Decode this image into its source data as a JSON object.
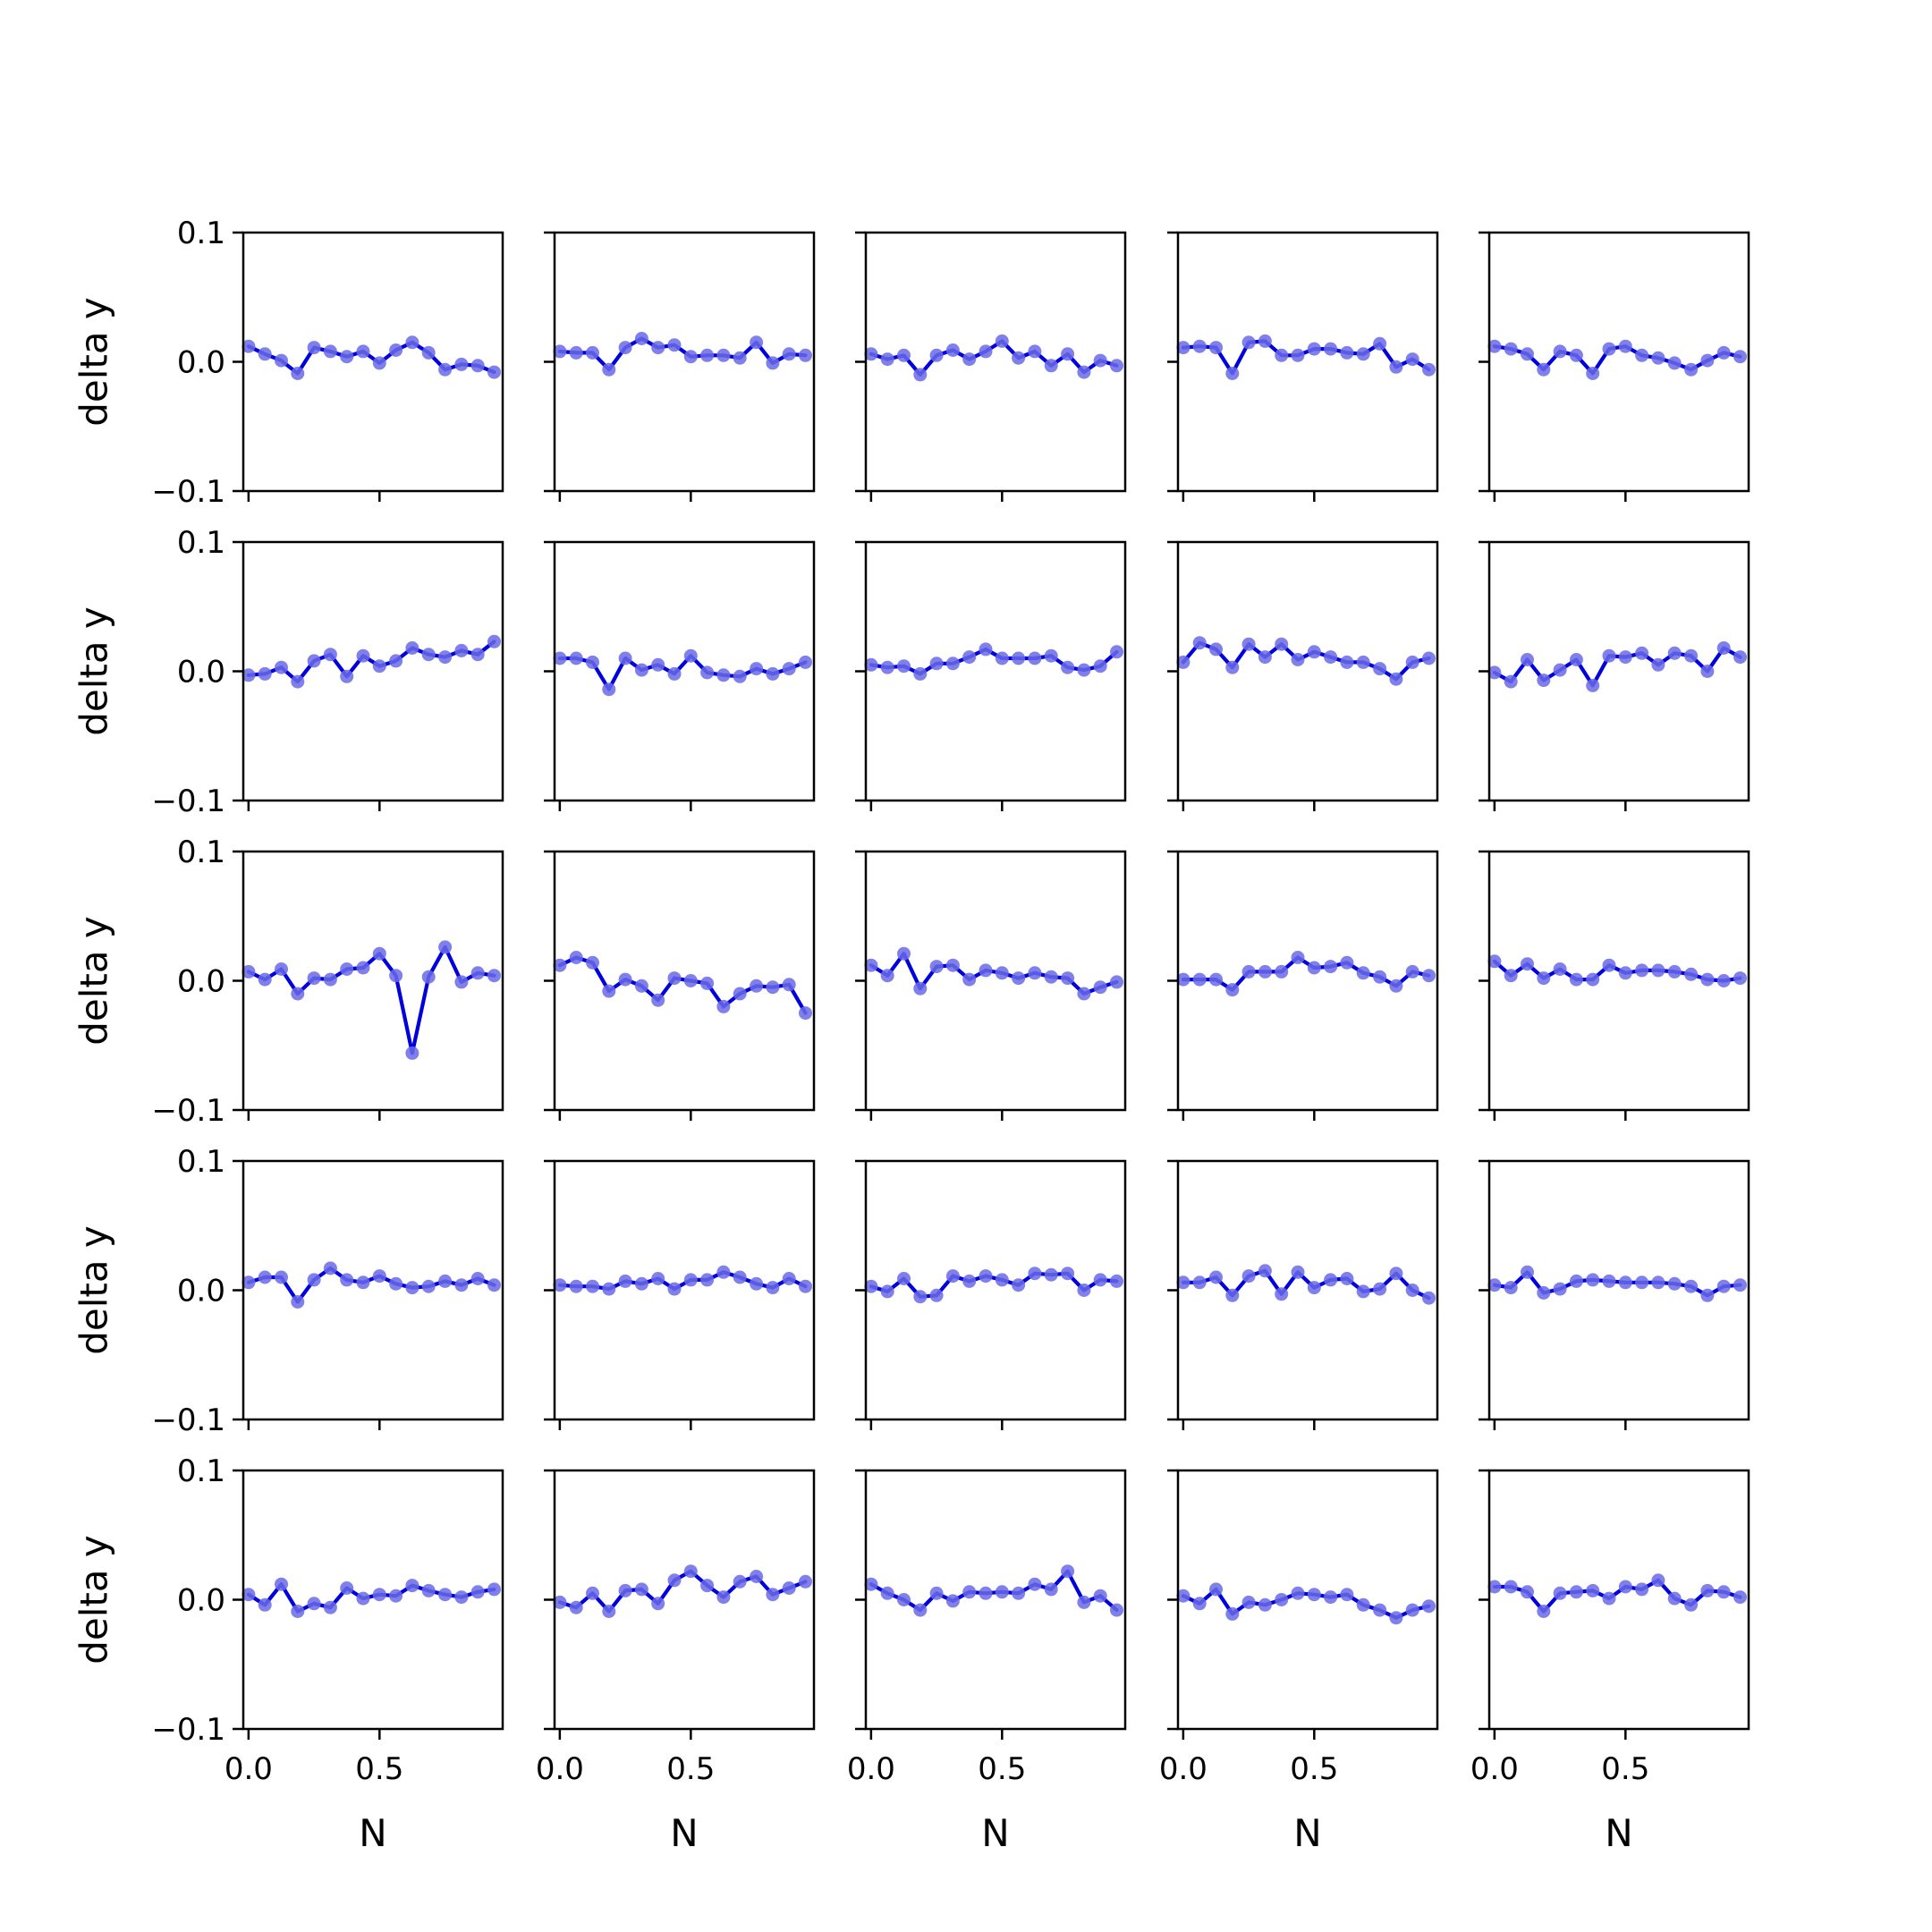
{
  "chart_data": {
    "type": "line",
    "layout": "5x5 grid of subplots, shared axes",
    "xlabel": "N",
    "ylabel": "delta y",
    "xlim": [
      -0.02,
      0.97
    ],
    "ylim": [
      -0.1,
      0.1
    ],
    "xticks": [
      0.0,
      0.5
    ],
    "xtick_labels": [
      "0.0",
      "0.5"
    ],
    "yticks": [
      -0.1,
      0.0,
      0.1
    ],
    "ytick_labels": [
      "−0.1",
      "0.0",
      "0.1"
    ],
    "grid": false,
    "line_color": "#0000dd",
    "marker_color": "#6a6ae8",
    "x": [
      0.0,
      0.0625,
      0.125,
      0.1875,
      0.25,
      0.3125,
      0.375,
      0.4375,
      0.5,
      0.5625,
      0.625,
      0.6875,
      0.75,
      0.8125,
      0.875,
      0.9375
    ],
    "subplots": [
      {
        "row": 1,
        "col": 1,
        "y": [
          0.012,
          0.006,
          0.001,
          -0.009,
          0.011,
          0.008,
          0.004,
          0.008,
          -0.001,
          0.009,
          0.015,
          0.007,
          -0.006,
          -0.002,
          -0.003,
          -0.008
        ]
      },
      {
        "row": 1,
        "col": 2,
        "y": [
          0.008,
          0.007,
          0.007,
          -0.006,
          0.011,
          0.018,
          0.011,
          0.013,
          0.004,
          0.005,
          0.005,
          0.003,
          0.015,
          -0.001,
          0.006,
          0.005
        ]
      },
      {
        "row": 1,
        "col": 3,
        "y": [
          0.006,
          0.002,
          0.005,
          -0.01,
          0.005,
          0.009,
          0.002,
          0.008,
          0.016,
          0.003,
          0.008,
          -0.003,
          0.006,
          -0.008,
          0.001,
          -0.003
        ]
      },
      {
        "row": 1,
        "col": 4,
        "y": [
          0.011,
          0.012,
          0.011,
          -0.009,
          0.015,
          0.016,
          0.005,
          0.005,
          0.01,
          0.01,
          0.007,
          0.006,
          0.014,
          -0.004,
          0.002,
          -0.006
        ]
      },
      {
        "row": 1,
        "col": 5,
        "y": [
          0.012,
          0.01,
          0.006,
          -0.006,
          0.008,
          0.005,
          -0.009,
          0.01,
          0.012,
          0.005,
          0.003,
          -0.001,
          -0.006,
          0.001,
          0.007,
          0.004
        ]
      },
      {
        "row": 2,
        "col": 1,
        "y": [
          -0.003,
          -0.002,
          0.003,
          -0.008,
          0.008,
          0.013,
          -0.004,
          0.012,
          0.004,
          0.008,
          0.018,
          0.013,
          0.011,
          0.016,
          0.013,
          0.023
        ]
      },
      {
        "row": 2,
        "col": 2,
        "y": [
          0.01,
          0.01,
          0.007,
          -0.014,
          0.01,
          0.001,
          0.005,
          -0.002,
          0.012,
          -0.001,
          -0.003,
          -0.004,
          0.002,
          -0.002,
          0.002,
          0.007
        ]
      },
      {
        "row": 2,
        "col": 3,
        "y": [
          0.005,
          0.003,
          0.004,
          -0.002,
          0.006,
          0.006,
          0.011,
          0.017,
          0.01,
          0.01,
          0.01,
          0.012,
          0.003,
          0.001,
          0.004,
          0.015
        ]
      },
      {
        "row": 2,
        "col": 4,
        "y": [
          0.007,
          0.022,
          0.017,
          0.003,
          0.021,
          0.011,
          0.021,
          0.009,
          0.015,
          0.011,
          0.007,
          0.007,
          0.002,
          -0.006,
          0.007,
          0.01
        ]
      },
      {
        "row": 2,
        "col": 5,
        "y": [
          -0.001,
          -0.008,
          0.009,
          -0.007,
          0.001,
          0.009,
          -0.011,
          0.012,
          0.011,
          0.014,
          0.005,
          0.014,
          0.012,
          0.0,
          0.018,
          0.011
        ]
      },
      {
        "row": 3,
        "col": 1,
        "y": [
          0.007,
          0.001,
          0.009,
          -0.01,
          0.002,
          0.001,
          0.009,
          0.01,
          0.021,
          0.004,
          -0.056,
          0.003,
          0.026,
          -0.001,
          0.006,
          0.004
        ]
      },
      {
        "row": 3,
        "col": 2,
        "y": [
          0.012,
          0.018,
          0.014,
          -0.008,
          0.001,
          -0.004,
          -0.015,
          0.002,
          0.0,
          -0.002,
          -0.02,
          -0.01,
          -0.004,
          -0.005,
          -0.003,
          -0.025
        ]
      },
      {
        "row": 3,
        "col": 3,
        "y": [
          0.012,
          0.004,
          0.021,
          -0.006,
          0.011,
          0.012,
          0.001,
          0.008,
          0.006,
          0.002,
          0.006,
          0.003,
          0.002,
          -0.01,
          -0.005,
          -0.001
        ]
      },
      {
        "row": 3,
        "col": 4,
        "y": [
          0.001,
          0.001,
          0.001,
          -0.007,
          0.007,
          0.007,
          0.007,
          0.018,
          0.01,
          0.011,
          0.014,
          0.006,
          0.003,
          -0.004,
          0.007,
          0.004
        ]
      },
      {
        "row": 3,
        "col": 5,
        "y": [
          0.015,
          0.004,
          0.013,
          0.002,
          0.009,
          0.001,
          0.001,
          0.012,
          0.006,
          0.008,
          0.008,
          0.007,
          0.005,
          0.001,
          0.0,
          0.002
        ]
      },
      {
        "row": 4,
        "col": 1,
        "y": [
          0.006,
          0.01,
          0.01,
          -0.009,
          0.008,
          0.017,
          0.008,
          0.006,
          0.011,
          0.005,
          0.002,
          0.003,
          0.007,
          0.004,
          0.009,
          0.004
        ]
      },
      {
        "row": 4,
        "col": 2,
        "y": [
          0.004,
          0.003,
          0.003,
          0.001,
          0.007,
          0.005,
          0.009,
          0.001,
          0.008,
          0.008,
          0.014,
          0.01,
          0.005,
          0.002,
          0.009,
          0.003
        ]
      },
      {
        "row": 4,
        "col": 3,
        "y": [
          0.003,
          -0.001,
          0.009,
          -0.005,
          -0.004,
          0.011,
          0.007,
          0.011,
          0.008,
          0.004,
          0.013,
          0.012,
          0.013,
          0.0,
          0.008,
          0.007
        ]
      },
      {
        "row": 4,
        "col": 4,
        "y": [
          0.006,
          0.006,
          0.01,
          -0.004,
          0.011,
          0.015,
          -0.003,
          0.014,
          0.002,
          0.008,
          0.009,
          -0.001,
          0.001,
          0.013,
          0.0,
          -0.006
        ]
      },
      {
        "row": 4,
        "col": 5,
        "y": [
          0.004,
          0.002,
          0.014,
          -0.002,
          0.001,
          0.007,
          0.008,
          0.007,
          0.006,
          0.006,
          0.006,
          0.005,
          0.003,
          -0.004,
          0.003,
          0.004
        ]
      },
      {
        "row": 5,
        "col": 1,
        "y": [
          0.004,
          -0.004,
          0.012,
          -0.009,
          -0.003,
          -0.006,
          0.009,
          0.001,
          0.004,
          0.003,
          0.011,
          0.007,
          0.004,
          0.002,
          0.006,
          0.008
        ]
      },
      {
        "row": 5,
        "col": 2,
        "y": [
          -0.002,
          -0.006,
          0.005,
          -0.009,
          0.007,
          0.008,
          -0.003,
          0.015,
          0.022,
          0.011,
          0.002,
          0.014,
          0.018,
          0.004,
          0.009,
          0.014
        ]
      },
      {
        "row": 5,
        "col": 3,
        "y": [
          0.012,
          0.005,
          0.0,
          -0.008,
          0.005,
          -0.001,
          0.006,
          0.005,
          0.006,
          0.005,
          0.012,
          0.008,
          0.022,
          -0.002,
          0.003,
          -0.008
        ]
      },
      {
        "row": 5,
        "col": 4,
        "y": [
          0.003,
          -0.003,
          0.008,
          -0.011,
          -0.002,
          -0.004,
          0.0,
          0.005,
          0.004,
          0.002,
          0.004,
          -0.004,
          -0.008,
          -0.014,
          -0.008,
          -0.005
        ]
      },
      {
        "row": 5,
        "col": 5,
        "y": [
          0.01,
          0.01,
          0.006,
          -0.009,
          0.005,
          0.006,
          0.007,
          0.001,
          0.01,
          0.008,
          0.015,
          0.001,
          -0.004,
          0.007,
          0.006,
          0.002
        ]
      }
    ]
  }
}
